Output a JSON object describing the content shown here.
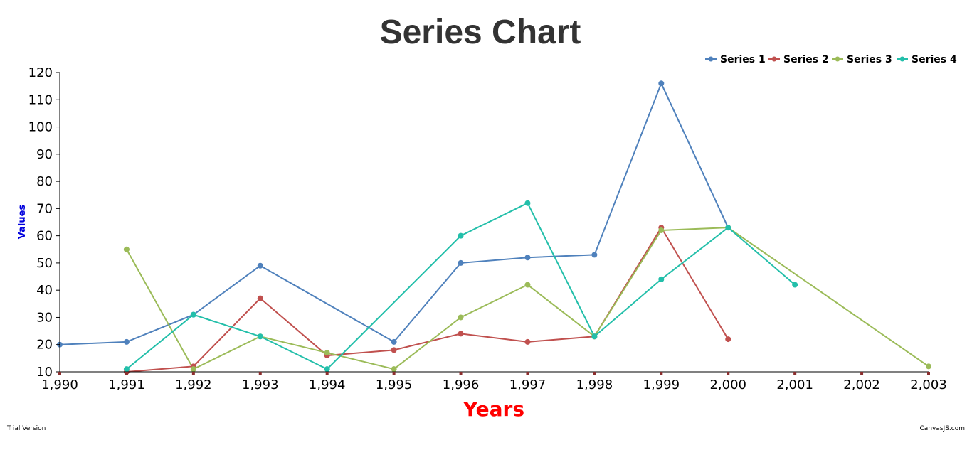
{
  "credits": {
    "left": "Trial Version",
    "right": "CanvasJS.com"
  },
  "chart_data": {
    "type": "line",
    "title": "Series Chart",
    "xlabel": "Years",
    "ylabel": "Values",
    "xlim": [
      1990,
      2003
    ],
    "ylim": [
      10,
      120
    ],
    "x_ticks": [
      1990,
      1991,
      1992,
      1993,
      1994,
      1995,
      1996,
      1997,
      1998,
      1999,
      2000,
      2001,
      2002,
      2003
    ],
    "x_tick_labels": [
      "1,990",
      "1,991",
      "1,992",
      "1,993",
      "1,994",
      "1,995",
      "1,996",
      "1,997",
      "1,998",
      "1,999",
      "2,000",
      "2,001",
      "2,002",
      "2,003"
    ],
    "y_ticks": [
      10,
      20,
      30,
      40,
      50,
      60,
      70,
      80,
      90,
      100,
      110,
      120
    ],
    "y_tick_labels": [
      "10",
      "20",
      "30",
      "40",
      "50",
      "60",
      "70",
      "80",
      "90",
      "100",
      "110",
      "120"
    ],
    "grid": false,
    "legend_position": "top-right",
    "series": [
      {
        "name": "Series 1",
        "color": "#4f81bc",
        "segments": [
          [
            [
              1990,
              20
            ],
            [
              1991,
              21
            ],
            [
              1992,
              31
            ],
            [
              1993,
              49
            ],
            [
              1995,
              21
            ],
            [
              1996,
              50
            ],
            [
              1997,
              52
            ],
            [
              1998,
              53
            ],
            [
              1999,
              116
            ],
            [
              2000,
              63
            ]
          ]
        ]
      },
      {
        "name": "Series 2",
        "color": "#c0504e",
        "segments": [
          [
            [
              1991,
              10
            ],
            [
              1992,
              12
            ],
            [
              1993,
              37
            ],
            [
              1994,
              16
            ],
            [
              1995,
              18
            ],
            [
              1996,
              24
            ],
            [
              1997,
              21
            ],
            [
              1998,
              23
            ],
            [
              1999,
              63
            ],
            [
              2000,
              22
            ]
          ]
        ]
      },
      {
        "name": "Series 3",
        "color": "#9bbb58",
        "segments": [
          [
            [
              1991,
              55
            ],
            [
              1992,
              11
            ],
            [
              1993,
              23
            ],
            [
              1994,
              17
            ],
            [
              1995,
              11
            ],
            [
              1996,
              30
            ],
            [
              1997,
              42
            ],
            [
              1998,
              23
            ],
            [
              1999,
              62
            ],
            [
              2000,
              63
            ],
            [
              2003,
              12
            ]
          ]
        ]
      },
      {
        "name": "Series 4",
        "color": "#23bfaa",
        "segments": [
          [
            [
              1991,
              11
            ],
            [
              1992,
              31
            ],
            [
              1993,
              23
            ],
            [
              1994,
              11
            ],
            [
              1996,
              60
            ],
            [
              1997,
              72
            ],
            [
              1998,
              23
            ],
            [
              1999,
              44
            ],
            [
              2000,
              63
            ],
            [
              2001,
              42
            ]
          ]
        ]
      }
    ]
  }
}
